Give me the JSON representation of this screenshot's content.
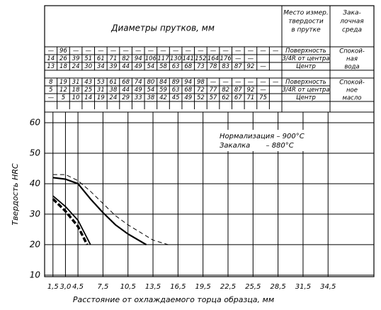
{
  "table": {
    "header": {
      "diameters": "Диаметры прутков, мм",
      "location": [
        "Место измер.",
        "твердости",
        "в прутке"
      ],
      "medium": [
        "Зака-",
        "лочная",
        "среда"
      ]
    },
    "groups": [
      {
        "medium": [
          "Спокой-",
          "ная",
          "вода"
        ],
        "rows": [
          {
            "cells": [
              "—",
              96,
              "—",
              "—",
              "—",
              "—",
              "—",
              "—",
              "—",
              "—",
              "—",
              "—",
              "—",
              "—",
              "—",
              "—",
              "—",
              "—",
              "—"
            ],
            "location": "Поверхность"
          },
          {
            "cells": [
              14,
              26,
              39,
              51,
              61,
              71,
              82,
              94,
              106,
              117,
              130,
              141,
              152,
              164,
              176,
              "—",
              "—"
            ],
            "location": "3/4R от центра"
          },
          {
            "cells": [
              13,
              18,
              24,
              30,
              34,
              39,
              44,
              49,
              54,
              58,
              63,
              68,
              73,
              78,
              83,
              87,
              92,
              "—"
            ],
            "location": "Центр"
          }
        ]
      },
      {
        "medium": [
          "Спокой-",
          "ное",
          "масло"
        ],
        "rows": [
          {
            "cells": [
              8,
              19,
              31,
              43,
              53,
              61,
              68,
              74,
              80,
              84,
              89,
              94,
              98,
              "—",
              "—",
              "—",
              "—",
              "—",
              "—"
            ],
            "location": "Поверхность"
          },
          {
            "cells": [
              5,
              12,
              18,
              25,
              31,
              38,
              44,
              49,
              54,
              59,
              63,
              68,
              72,
              77,
              82,
              87,
              92,
              "—"
            ],
            "location": "3/4R от центра"
          },
          {
            "cells": [
              "—",
              5,
              10,
              14,
              19,
              24,
              29,
              33,
              38,
              42,
              45,
              49,
              52,
              57,
              62,
              67,
              71,
              75
            ],
            "location": "Центр"
          }
        ]
      }
    ]
  },
  "chart_data": {
    "type": "line",
    "x_label": "Расстояние от охлаждаемого торца образца, мм",
    "y_label": "Твердость HRC",
    "annotations": [
      "Нормализация – 900°С",
      "Закалка       – 880°С"
    ],
    "xlim": [
      0.5,
      40
    ],
    "ylim": [
      9.5,
      63.5
    ],
    "xticks": [
      {
        "value": 1.5,
        "label": "1,5"
      },
      {
        "value": 3,
        "label": "3,0"
      },
      {
        "value": 4.5,
        "label": "4,5"
      },
      {
        "value": 7.5,
        "label": "7,5"
      },
      {
        "value": 10.5,
        "label": "10,5"
      },
      {
        "value": 13.5,
        "label": "13,5"
      },
      {
        "value": 16.5,
        "label": "16,5"
      },
      {
        "value": 19.5,
        "label": "19,5"
      },
      {
        "value": 22.5,
        "label": "22,5"
      },
      {
        "value": 25.5,
        "label": "25,5"
      },
      {
        "value": 28.5,
        "label": "28,5"
      },
      {
        "value": 31.5,
        "label": "31,5"
      },
      {
        "value": 34.5,
        "label": "34,5"
      }
    ],
    "yticks": [
      10,
      20,
      30,
      40,
      50,
      60
    ],
    "grid": true,
    "series": [
      {
        "color": "#000",
        "style": "dashed",
        "width": 1,
        "x": [
          1.5,
          3,
          4.5,
          6,
          7.5,
          9,
          10.5,
          12,
          13.5,
          15.3
        ],
        "values": [
          43,
          43,
          41,
          37.5,
          33.5,
          29.5,
          26.5,
          24,
          21.5,
          20
        ]
      },
      {
        "color": "#000",
        "style": "solid",
        "width": 2.2,
        "x": [
          1.5,
          3,
          4.5,
          6,
          7.5,
          9,
          10.5,
          12.7
        ],
        "values": [
          42,
          41.5,
          40,
          35,
          30.5,
          26.5,
          23.5,
          20
        ]
      },
      {
        "color": "#000",
        "style": "solid",
        "width": 1.8,
        "x": [
          1.5,
          3,
          4.5,
          6
        ],
        "values": [
          36,
          32.5,
          28,
          20
        ]
      },
      {
        "color": "#000",
        "style": "dashed",
        "width": 3.5,
        "x": [
          1.5,
          3,
          4.5,
          5.6
        ],
        "values": [
          35,
          31,
          26,
          20
        ]
      }
    ]
  }
}
